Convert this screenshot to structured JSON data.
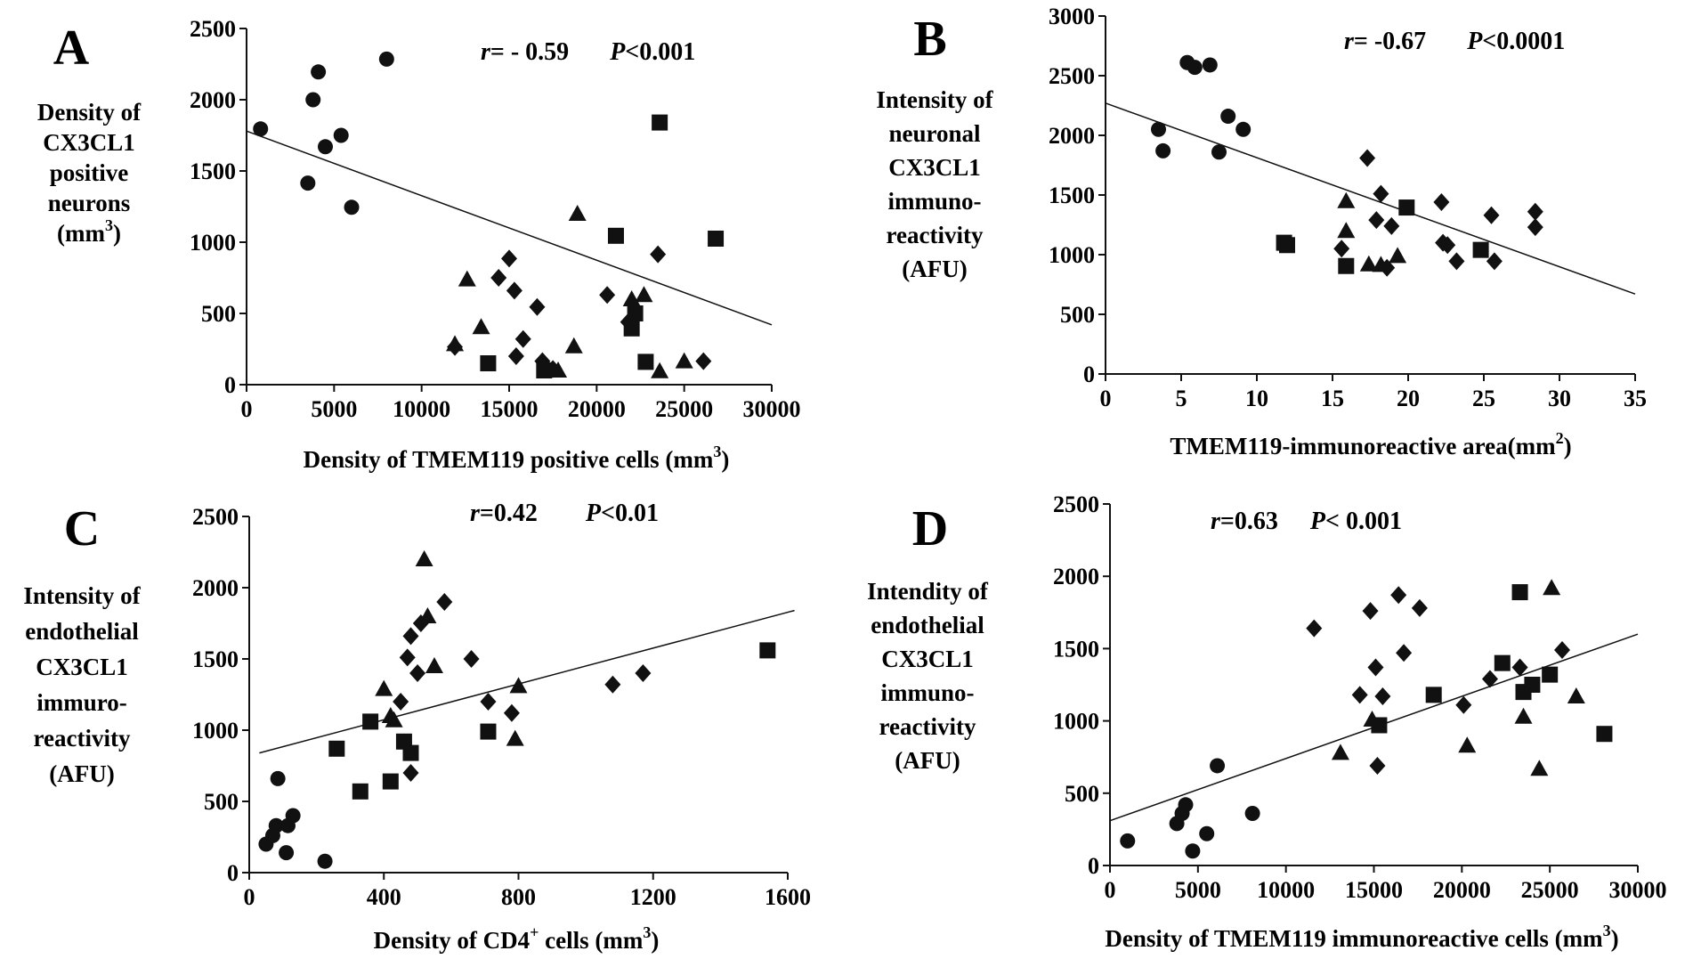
{
  "figure": {
    "panels": [
      "A",
      "B",
      "C",
      "D"
    ]
  },
  "chart_data": [
    {
      "id": "A",
      "type": "scatter",
      "letter": "A",
      "ylabel": [
        "Density of",
        "CX3CL1",
        "positive",
        "neurons",
        "(mm"
      ],
      "ylabel_sup": "3",
      "ylabel_close": ")",
      "xlabel": "Density of TMEM119 positive cells (mm",
      "xlabel_sup": "3",
      "xlabel_close": ")",
      "stat_r_label": "r",
      "stat_r_value": "= - 0.59",
      "stat_p_label": "P",
      "stat_p_value": "<0.001",
      "xlim": [
        0,
        30000
      ],
      "ylim": [
        0,
        2500
      ],
      "xticks": [
        0,
        5000,
        10000,
        15000,
        20000,
        25000,
        30000
      ],
      "yticks": [
        0,
        500,
        1000,
        1500,
        2000,
        2500
      ],
      "regression": [
        [
          0,
          1780
        ],
        [
          30000,
          420
        ]
      ],
      "series": [
        {
          "name": "circle",
          "marker": "circle",
          "points": [
            [
              800,
              1795
            ],
            [
              3500,
              1415
            ],
            [
              3800,
              2000
            ],
            [
              4100,
              2195
            ],
            [
              4500,
              1670
            ],
            [
              5400,
              1750
            ],
            [
              6000,
              1245
            ],
            [
              8000,
              2285
            ]
          ]
        },
        {
          "name": "square",
          "marker": "square",
          "points": [
            [
              13800,
              150
            ],
            [
              17000,
              100
            ],
            [
              21100,
              1045
            ],
            [
              22000,
              395
            ],
            [
              22200,
              500
            ],
            [
              22800,
              160
            ],
            [
              23600,
              1840
            ],
            [
              26800,
              1025
            ]
          ]
        },
        {
          "name": "triangle",
          "marker": "triangle",
          "points": [
            [
              11900,
              285
            ],
            [
              12600,
              740
            ],
            [
              13400,
              405
            ],
            [
              17800,
              100
            ],
            [
              18700,
              270
            ],
            [
              18900,
              1200
            ],
            [
              22000,
              600
            ],
            [
              22700,
              630
            ],
            [
              23600,
              95
            ],
            [
              25000,
              165
            ]
          ]
        },
        {
          "name": "diamond",
          "marker": "diamond",
          "points": [
            [
              11900,
              265
            ],
            [
              14400,
              750
            ],
            [
              15000,
              885
            ],
            [
              15300,
              660
            ],
            [
              15400,
              200
            ],
            [
              15800,
              320
            ],
            [
              16600,
              545
            ],
            [
              16900,
              165
            ],
            [
              17500,
              110
            ],
            [
              20600,
              630
            ],
            [
              21800,
              440
            ],
            [
              23500,
              915
            ],
            [
              26100,
              165
            ]
          ]
        }
      ]
    },
    {
      "id": "B",
      "type": "scatter",
      "letter": "B",
      "ylabel": [
        "Intensity of",
        "neuronal",
        "CX3CL1",
        "immuno-",
        "reactivity",
        "(AFU)"
      ],
      "xlabel": "TMEM119-immunoreactive area(mm",
      "xlabel_sup": "2",
      "xlabel_close": ")",
      "stat_r_label": "r",
      "stat_r_value": "= -0.67",
      "stat_p_label": "P",
      "stat_p_value": "<0.0001",
      "xlim": [
        0,
        35
      ],
      "ylim": [
        0,
        3000
      ],
      "xticks": [
        0,
        5,
        10,
        15,
        20,
        25,
        30,
        35
      ],
      "yticks": [
        0,
        500,
        1000,
        1500,
        2000,
        2500,
        3000
      ],
      "regression": [
        [
          0,
          2270
        ],
        [
          35,
          670
        ]
      ],
      "series": [
        {
          "name": "circle",
          "marker": "circle",
          "points": [
            [
              3.5,
              2050
            ],
            [
              3.8,
              1870
            ],
            [
              5.4,
              2610
            ],
            [
              5.9,
              2570
            ],
            [
              6.9,
              2590
            ],
            [
              7.5,
              1860
            ],
            [
              8.1,
              2160
            ],
            [
              9.1,
              2050
            ]
          ]
        },
        {
          "name": "square",
          "marker": "square",
          "points": [
            [
              11.8,
              1100
            ],
            [
              12.0,
              1080
            ],
            [
              15.9,
              905
            ],
            [
              19.9,
              1395
            ],
            [
              24.8,
              1040
            ]
          ]
        },
        {
          "name": "triangle",
          "marker": "triangle",
          "points": [
            [
              15.9,
              1450
            ],
            [
              15.9,
              1200
            ],
            [
              17.4,
              920
            ],
            [
              18.2,
              915
            ],
            [
              19.3,
              990
            ]
          ]
        },
        {
          "name": "diamond",
          "marker": "diamond",
          "points": [
            [
              15.6,
              1050
            ],
            [
              17.9,
              1290
            ],
            [
              18.2,
              1510
            ],
            [
              18.6,
              890
            ],
            [
              18.9,
              1240
            ],
            [
              17.3,
              1810
            ],
            [
              22.2,
              1440
            ],
            [
              22.3,
              1100
            ],
            [
              22.6,
              1080
            ],
            [
              23.2,
              945
            ],
            [
              25.5,
              1330
            ],
            [
              25.7,
              945
            ],
            [
              28.4,
              1360
            ],
            [
              28.4,
              1230
            ]
          ]
        }
      ]
    },
    {
      "id": "C",
      "type": "scatter",
      "letter": "C",
      "ylabel": [
        "Intensity of",
        "endothelial",
        "CX3CL1",
        "immuro-",
        "reactivity",
        "(AFU)"
      ],
      "xlabel": "Density of CD4",
      "xlabel_sup": "+",
      "xlabel_tail": " cells (mm",
      "xlabel_sup2": "3",
      "xlabel_close": ")",
      "stat_r_label": "r",
      "stat_r_value": "=0.42",
      "stat_p_label": "P",
      "stat_p_value": "<0.01",
      "xlim": [
        0,
        1600
      ],
      "ylim": [
        0,
        2500
      ],
      "xticks": [
        0,
        400,
        800,
        1200,
        1600
      ],
      "yticks": [
        0,
        500,
        1000,
        1500,
        2000,
        2500
      ],
      "regression": [
        [
          30,
          840
        ],
        [
          1620,
          1840
        ]
      ],
      "series": [
        {
          "name": "circle",
          "marker": "circle",
          "points": [
            [
              50,
              200
            ],
            [
              70,
              260
            ],
            [
              80,
              330
            ],
            [
              85,
              660
            ],
            [
              110,
              140
            ],
            [
              115,
              330
            ],
            [
              130,
              400
            ],
            [
              225,
              80
            ]
          ]
        },
        {
          "name": "square",
          "marker": "square",
          "points": [
            [
              260,
              870
            ],
            [
              330,
              570
            ],
            [
              360,
              1060
            ],
            [
              420,
              640
            ],
            [
              460,
              920
            ],
            [
              480,
              840
            ],
            [
              710,
              990
            ],
            [
              1540,
              1560
            ]
          ]
        },
        {
          "name": "triangle",
          "marker": "triangle",
          "points": [
            [
              400,
              1290
            ],
            [
              420,
              1100
            ],
            [
              430,
              1070
            ],
            [
              520,
              2200
            ],
            [
              530,
              1800
            ],
            [
              550,
              1450
            ],
            [
              790,
              940
            ],
            [
              800,
              1310
            ]
          ]
        },
        {
          "name": "diamond",
          "marker": "diamond",
          "points": [
            [
              450,
              1200
            ],
            [
              470,
              1510
            ],
            [
              480,
              1660
            ],
            [
              480,
              700
            ],
            [
              500,
              1400
            ],
            [
              510,
              1750
            ],
            [
              580,
              1900
            ],
            [
              660,
              1500
            ],
            [
              710,
              1200
            ],
            [
              780,
              1120
            ],
            [
              1080,
              1320
            ],
            [
              1170,
              1400
            ]
          ]
        }
      ]
    },
    {
      "id": "D",
      "type": "scatter",
      "letter": "D",
      "ylabel": [
        "Intendity of",
        "endothelial",
        "CX3CL1",
        "immuno-",
        "reactivity",
        "(AFU)"
      ],
      "xlabel": "Density of TMEM119 immunoreactive cells (mm",
      "xlabel_sup": "3",
      "xlabel_close": ")",
      "stat_r_label": "r",
      "stat_r_value": "=0.63",
      "stat_p_label": "P",
      "stat_p_value": "< 0.001",
      "xlim": [
        0,
        30000
      ],
      "ylim": [
        0,
        2500
      ],
      "xticks": [
        0,
        5000,
        10000,
        15000,
        20000,
        25000,
        30000
      ],
      "yticks": [
        0,
        500,
        1000,
        1500,
        2000,
        2500
      ],
      "regression": [
        [
          0,
          310
        ],
        [
          30000,
          1600
        ]
      ],
      "series": [
        {
          "name": "circle",
          "marker": "circle",
          "points": [
            [
              1000,
              170
            ],
            [
              3800,
              290
            ],
            [
              4100,
              360
            ],
            [
              4300,
              420
            ],
            [
              4700,
              100
            ],
            [
              5500,
              220
            ],
            [
              6100,
              690
            ],
            [
              8100,
              360
            ]
          ]
        },
        {
          "name": "square",
          "marker": "square",
          "points": [
            [
              15300,
              970
            ],
            [
              18400,
              1180
            ],
            [
              22300,
              1400
            ],
            [
              23300,
              1890
            ],
            [
              23500,
              1200
            ],
            [
              24000,
              1250
            ],
            [
              25000,
              1320
            ],
            [
              28100,
              910
            ]
          ]
        },
        {
          "name": "triangle",
          "marker": "triangle",
          "points": [
            [
              13100,
              780
            ],
            [
              14900,
              1010
            ],
            [
              20300,
              830
            ],
            [
              23500,
              1030
            ],
            [
              24400,
              670
            ],
            [
              25100,
              1920
            ],
            [
              26500,
              1170
            ]
          ]
        },
        {
          "name": "diamond",
          "marker": "diamond",
          "points": [
            [
              11600,
              1640
            ],
            [
              14200,
              1180
            ],
            [
              14800,
              1760
            ],
            [
              15100,
              1370
            ],
            [
              15200,
              690
            ],
            [
              15500,
              1170
            ],
            [
              16400,
              1870
            ],
            [
              16700,
              1470
            ],
            [
              17600,
              1780
            ],
            [
              20100,
              1110
            ],
            [
              21600,
              1290
            ],
            [
              23300,
              1370
            ],
            [
              25700,
              1490
            ]
          ]
        }
      ]
    }
  ]
}
